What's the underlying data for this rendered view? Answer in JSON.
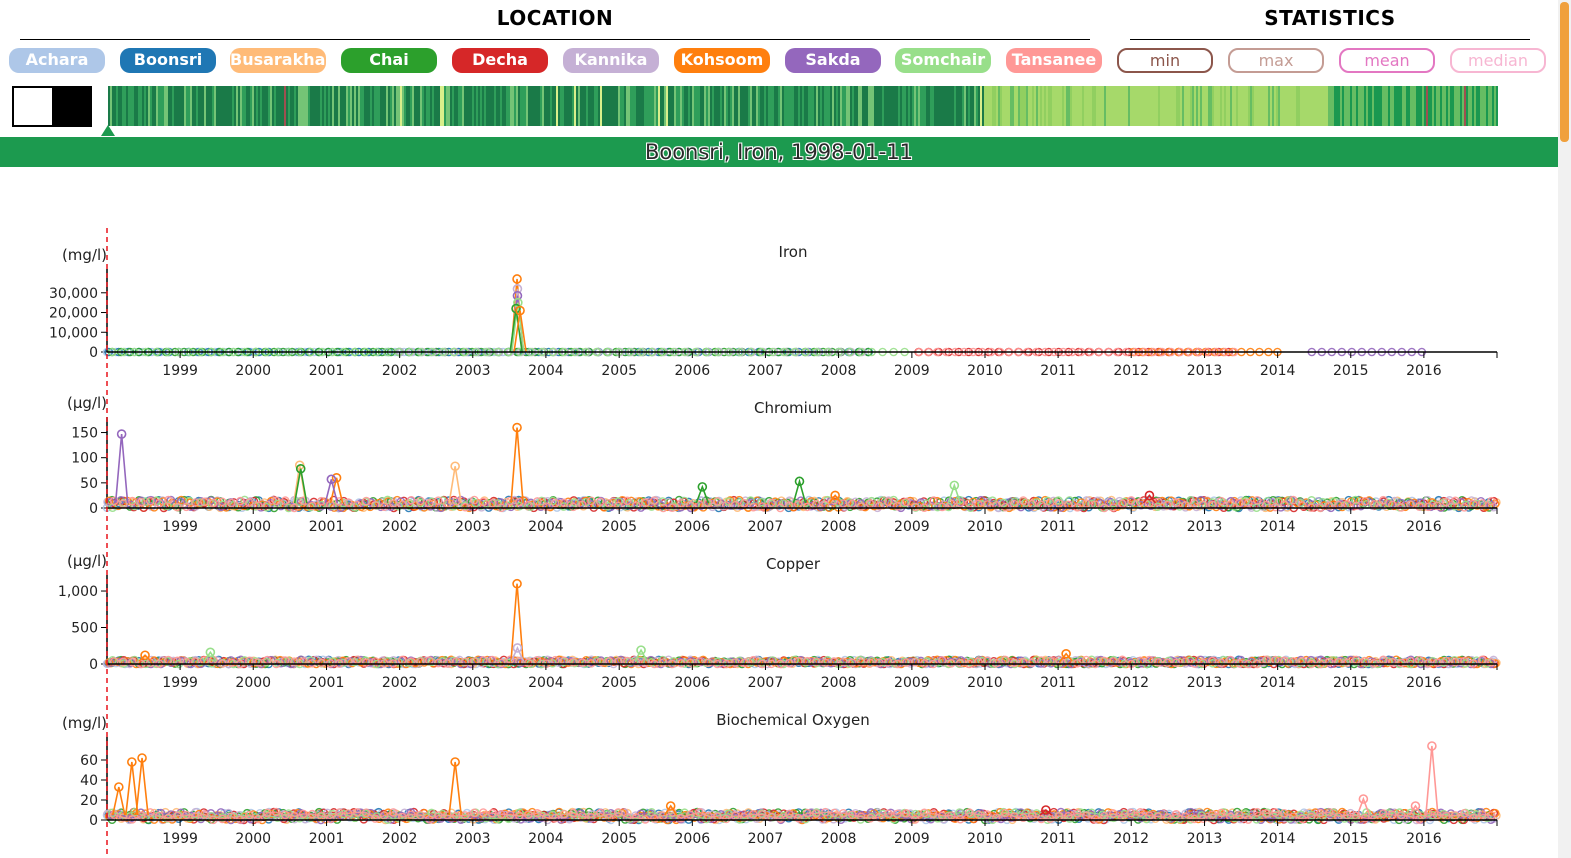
{
  "header": {
    "location_title": "LOCATION",
    "statistics_title": "STATISTICS"
  },
  "locations": [
    {
      "label": "Achara",
      "color": "#aec7e8"
    },
    {
      "label": "Boonsri",
      "color": "#1f77b4"
    },
    {
      "label": "Busarakhan",
      "color": "#ffbb78"
    },
    {
      "label": "Chai",
      "color": "#2ca02c"
    },
    {
      "label": "Decha",
      "color": "#d62728"
    },
    {
      "label": "Kannika",
      "color": "#c5b0d5"
    },
    {
      "label": "Kohsoom",
      "color": "#ff7f0e"
    },
    {
      "label": "Sakda",
      "color": "#9467bd"
    },
    {
      "label": "Somchair",
      "color": "#98df8a"
    },
    {
      "label": "Tansanee",
      "color": "#ff9896"
    }
  ],
  "statistics": [
    {
      "label": "min",
      "color": "#8c564b"
    },
    {
      "label": "max",
      "color": "#c49c94"
    },
    {
      "label": "mean",
      "color": "#e377c2"
    },
    {
      "label": "median",
      "color": "#f7b6d2"
    }
  ],
  "selection": {
    "banner": "Boonsri, Iron, 1998-01-11"
  },
  "chart_data": [
    {
      "type": "scatter",
      "title": "Iron",
      "ylabel": "(mg/l)",
      "xlim": [
        "1998-01-01",
        "2016-12-31"
      ],
      "ylim": [
        0,
        38000
      ],
      "yticks": [
        "0",
        "10,000",
        "20,000",
        "30,000"
      ],
      "ytick_values": [
        0,
        10000,
        20000,
        30000
      ],
      "xticks": [
        "1999",
        "2000",
        "2001",
        "2002",
        "2003",
        "2004",
        "2005",
        "2006",
        "2007",
        "2008",
        "2009",
        "2010",
        "2011",
        "2012",
        "2013",
        "2014",
        "2015",
        "2016"
      ],
      "baseline": 40,
      "spikes": [
        {
          "series": "Kohsoom",
          "x": "2003-08-10",
          "y": 37000
        },
        {
          "series": "Kannika",
          "x": "2003-08-12",
          "y": 32000
        },
        {
          "series": "Sakda",
          "x": "2003-08-12",
          "y": 28500
        },
        {
          "series": "Somchair",
          "x": "2003-08-14",
          "y": 25000
        },
        {
          "series": "Chai",
          "x": "2003-08-05",
          "y": 22000
        },
        {
          "series": "Kohsoom",
          "x": "2003-08-25",
          "y": 21000
        }
      ],
      "coverage": [
        {
          "series": "Achara",
          "from": "1998-01-01",
          "to": "2003-07-01"
        },
        {
          "series": "Boonsri",
          "from": "1998-01-01",
          "to": "2008-06-01"
        },
        {
          "series": "Chai",
          "from": "1998-01-01",
          "to": "2008-06-01"
        },
        {
          "series": "Somchair",
          "from": "1998-01-01",
          "to": "2009-01-01"
        },
        {
          "series": "Kannika",
          "from": "2002-01-01",
          "to": "2008-06-01"
        },
        {
          "series": "Tansanee",
          "from": "2009-01-01",
          "to": "2013-06-01"
        },
        {
          "series": "Decha",
          "from": "2009-01-01",
          "to": "2013-06-01"
        },
        {
          "series": "Kohsoom",
          "from": "2012-01-01",
          "to": "2014-01-01"
        },
        {
          "series": "Sakda",
          "from": "2014-06-01",
          "to": "2016-01-01"
        }
      ]
    },
    {
      "type": "scatter",
      "title": "Chromium",
      "ylabel": "(µg/l)",
      "xlim": [
        "1998-01-01",
        "2016-12-31"
      ],
      "ylim": [
        0,
        165
      ],
      "yticks": [
        "0",
        "50",
        "100",
        "150"
      ],
      "ytick_values": [
        0,
        50,
        100,
        150
      ],
      "xticks": [
        "1999",
        "2000",
        "2001",
        "2002",
        "2003",
        "2004",
        "2005",
        "2006",
        "2007",
        "2008",
        "2009",
        "2010",
        "2011",
        "2012",
        "2013",
        "2014",
        "2015",
        "2016"
      ],
      "baseline": 10,
      "spikes": [
        {
          "series": "Sakda",
          "x": "1998-03-15",
          "y": 147
        },
        {
          "series": "Kohsoom",
          "x": "2003-08-10",
          "y": 160
        },
        {
          "series": "Busarakhan",
          "x": "2000-08-20",
          "y": 85
        },
        {
          "series": "Chai",
          "x": "2000-08-25",
          "y": 78
        },
        {
          "series": "Busarakhan",
          "x": "2002-10-05",
          "y": 83
        },
        {
          "series": "Kohsoom",
          "x": "2001-02-20",
          "y": 60
        },
        {
          "series": "Sakda",
          "x": "2001-01-25",
          "y": 57
        },
        {
          "series": "Chai",
          "x": "2006-02-20",
          "y": 42
        },
        {
          "series": "Chai",
          "x": "2007-06-20",
          "y": 53
        },
        {
          "series": "Kohsoom",
          "x": "2007-12-15",
          "y": 25
        },
        {
          "series": "Decha",
          "x": "2012-04-01",
          "y": 25
        },
        {
          "series": "Somchair",
          "x": "2009-08-01",
          "y": 45
        }
      ]
    },
    {
      "type": "scatter",
      "title": "Copper",
      "ylabel": "(µg/l)",
      "xlim": [
        "1998-01-01",
        "2016-12-31"
      ],
      "ylim": [
        0,
        1110
      ],
      "yticks": [
        "0",
        "500",
        "1,000"
      ],
      "ytick_values": [
        0,
        500,
        1000
      ],
      "xticks": [
        "1999",
        "2000",
        "2001",
        "2002",
        "2003",
        "2004",
        "2005",
        "2006",
        "2007",
        "2008",
        "2009",
        "2010",
        "2011",
        "2012",
        "2013",
        "2014",
        "2015",
        "2016"
      ],
      "baseline": 40,
      "spikes": [
        {
          "series": "Kohsoom",
          "x": "2003-08-10",
          "y": 1100
        },
        {
          "series": "Kannika",
          "x": "2003-08-12",
          "y": 220
        },
        {
          "series": "Somchair",
          "x": "2005-04-20",
          "y": 190
        },
        {
          "series": "Somchair",
          "x": "1999-06-01",
          "y": 160
        },
        {
          "series": "Kohsoom",
          "x": "2011-02-10",
          "y": 140
        },
        {
          "series": "Kohsoom",
          "x": "1998-07-10",
          "y": 120
        }
      ]
    },
    {
      "type": "line",
      "title": "Biochemical Oxygen",
      "ylabel": "(mg/l)",
      "xlim": [
        "1998-01-01",
        "2016-12-31"
      ],
      "ylim": [
        0,
        75
      ],
      "yticks": [
        "0",
        "20",
        "40",
        "60"
      ],
      "ytick_values": [
        0,
        20,
        40,
        60
      ],
      "xticks": [
        "1999",
        "2000",
        "2001",
        "2002",
        "2003",
        "2004",
        "2005",
        "2006",
        "2007",
        "2008",
        "2009",
        "2010",
        "2011",
        "2012",
        "2013",
        "2014",
        "2015",
        "2016"
      ],
      "baseline": 5,
      "spikes": [
        {
          "series": "Kohsoom",
          "x": "1998-03-01",
          "y": 33
        },
        {
          "series": "Kohsoom",
          "x": "1998-05-05",
          "y": 58
        },
        {
          "series": "Kohsoom",
          "x": "1998-06-25",
          "y": 62
        },
        {
          "series": "Kohsoom",
          "x": "2002-10-05",
          "y": 58
        },
        {
          "series": "Kohsoom",
          "x": "2005-09-15",
          "y": 14
        },
        {
          "series": "Tansanee",
          "x": "2016-02-10",
          "y": 74
        },
        {
          "series": "Tansanee",
          "x": "2015-03-05",
          "y": 21
        },
        {
          "series": "Tansanee",
          "x": "2015-11-20",
          "y": 14
        },
        {
          "series": "Decha",
          "x": "2010-11-01",
          "y": 10
        }
      ]
    }
  ]
}
